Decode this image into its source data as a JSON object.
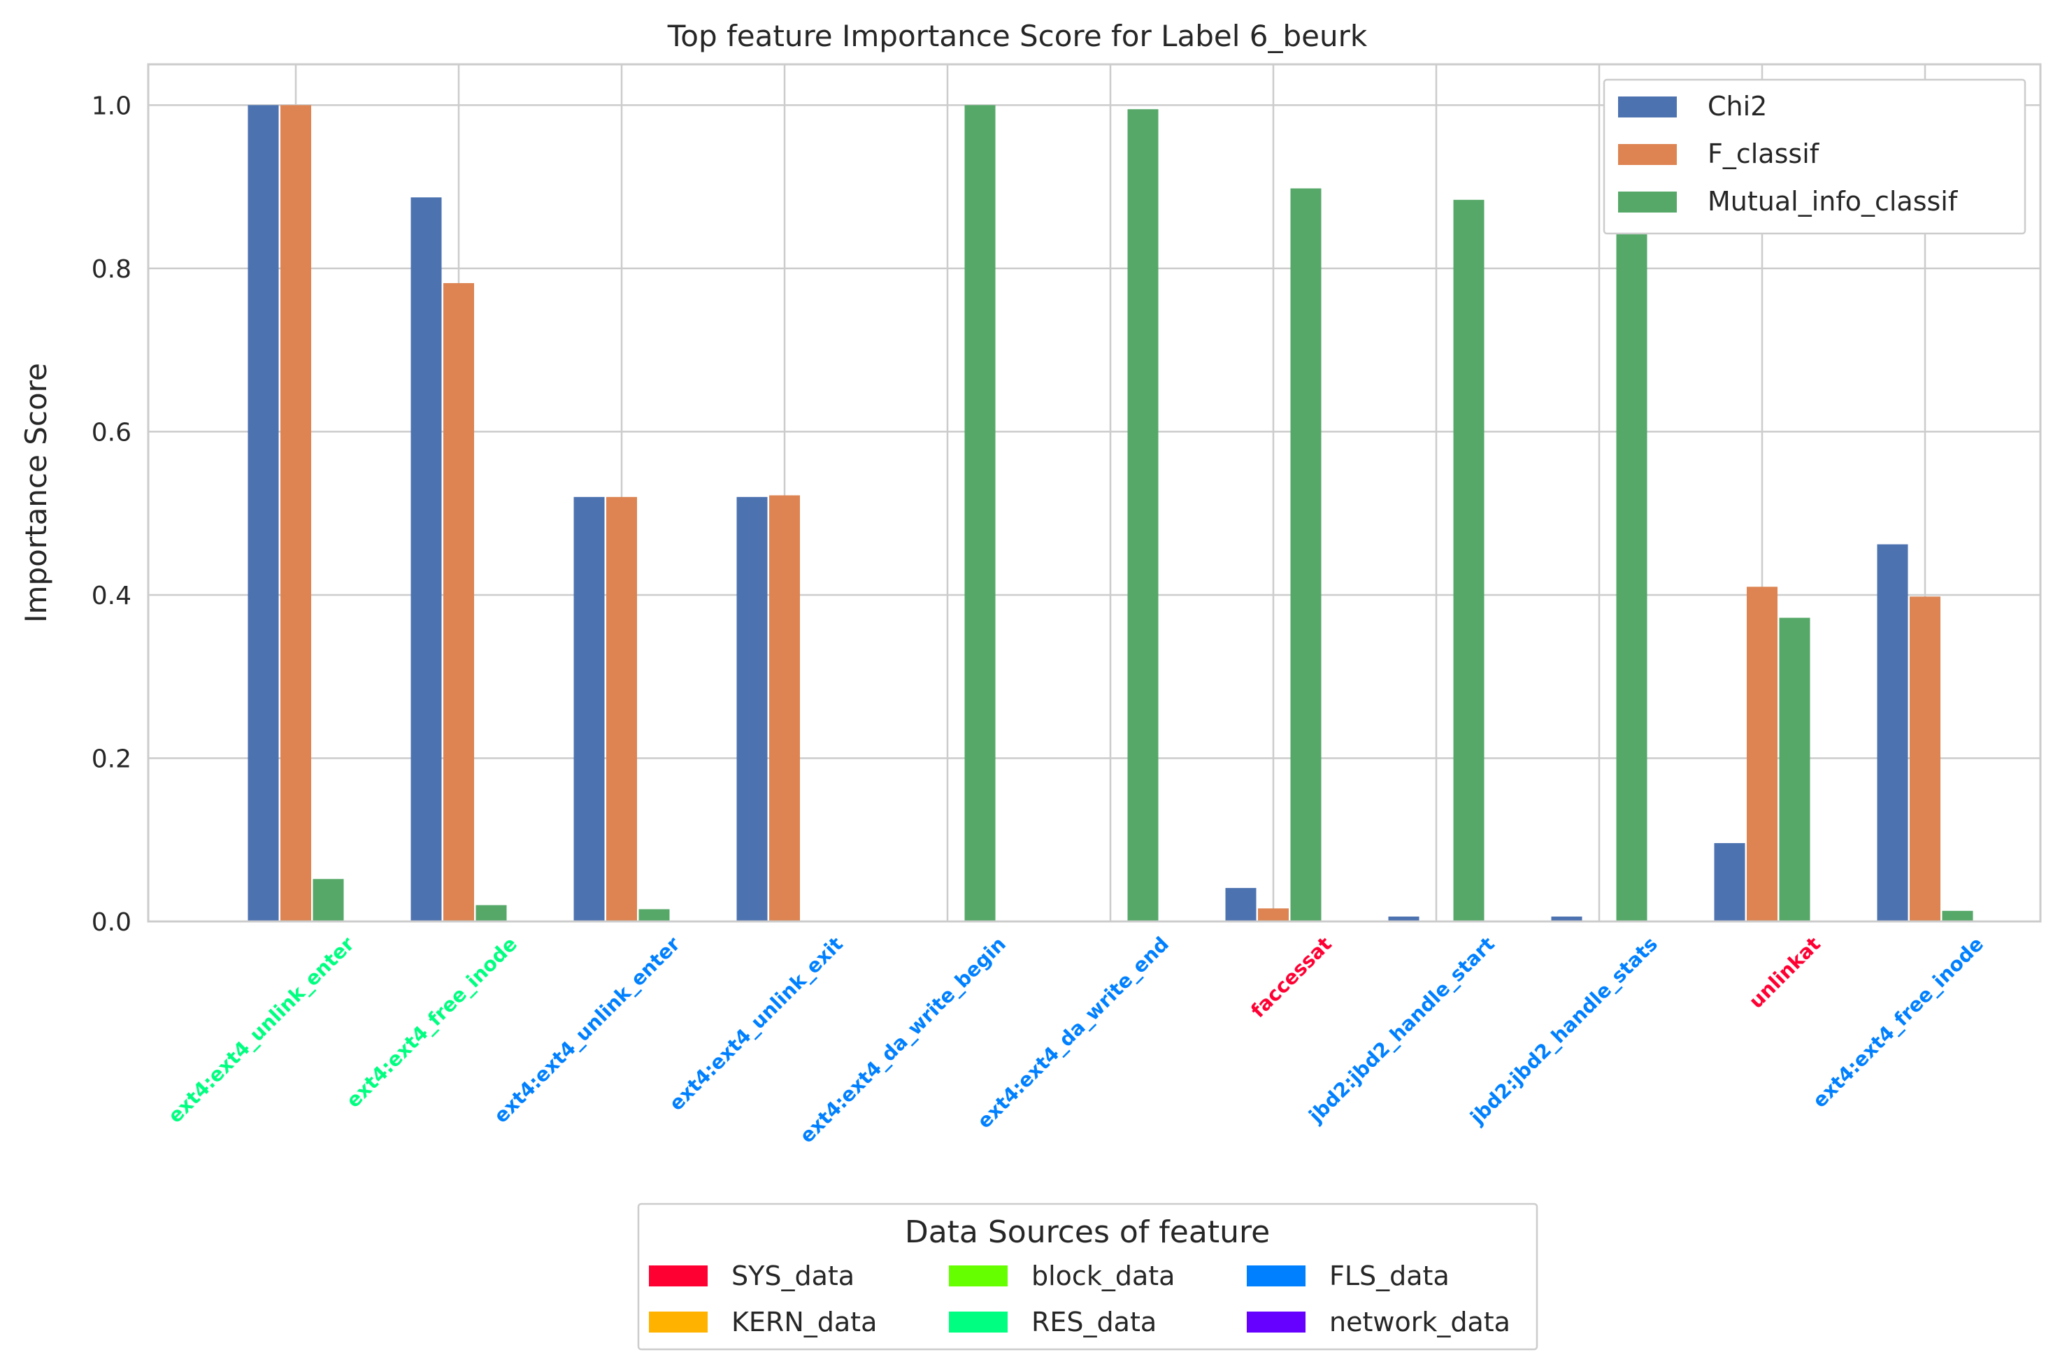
{
  "chart_data": {
    "type": "bar",
    "title": "Top feature Importance Score for Label 6_beurk",
    "xlabel": "",
    "ylabel": "Importance Score",
    "ylim": [
      0,
      1.05
    ],
    "yticks": [
      0.0,
      0.2,
      0.4,
      0.6,
      0.8,
      1.0
    ],
    "ytick_labels": [
      "0.0",
      "0.2",
      "0.4",
      "0.6",
      "0.8",
      "1.0"
    ],
    "grid": true,
    "legend_placement": "top-right",
    "categories": [
      "ext4:ext4_unlink_enter",
      "ext4:ext4_free_inode",
      "ext4:ext4_unlink_enter",
      "ext4:ext4_unlink_exit",
      "ext4:ext4_da_write_begin",
      "ext4:ext4_da_write_end",
      "faccessat",
      "jbd2:jbd2_handle_start",
      "jbd2:jbd2_handle_stats",
      "unlinkat",
      "ext4:ext4_free_inode"
    ],
    "category_sources": [
      "RES_data",
      "RES_data",
      "FLS_data",
      "FLS_data",
      "FLS_data",
      "FLS_data",
      "SYS_data",
      "FLS_data",
      "FLS_data",
      "SYS_data",
      "FLS_data"
    ],
    "series": [
      {
        "name": "Chi2",
        "color": "#4c72b0",
        "values": [
          1.0,
          0.887,
          0.52,
          0.52,
          0.0,
          0.0,
          0.041,
          0.006,
          0.006,
          0.096,
          0.462
        ]
      },
      {
        "name": "F_classif",
        "color": "#dd8452",
        "values": [
          1.0,
          0.782,
          0.52,
          0.522,
          0.0,
          0.0,
          0.016,
          0.0,
          0.0,
          0.41,
          0.398
        ]
      },
      {
        "name": "Mutual_info_classif",
        "color": "#55a868",
        "values": [
          0.052,
          0.02,
          0.015,
          0.0,
          1.0,
          0.995,
          0.898,
          0.884,
          0.875,
          0.372,
          0.013
        ]
      }
    ]
  },
  "data_sources_legend": {
    "title": "Data Sources of feature",
    "items": [
      {
        "name": "SYS_data",
        "color": "#ff0033"
      },
      {
        "name": "KERN_data",
        "color": "#ffb300"
      },
      {
        "name": "block_data",
        "color": "#66ff00"
      },
      {
        "name": "RES_data",
        "color": "#00ff80"
      },
      {
        "name": "FLS_data",
        "color": "#0080ff"
      },
      {
        "name": "network_data",
        "color": "#6600ff"
      }
    ]
  },
  "colors": {
    "axis": "#cccccc",
    "grid": "#cccccc",
    "text": "#262626"
  }
}
